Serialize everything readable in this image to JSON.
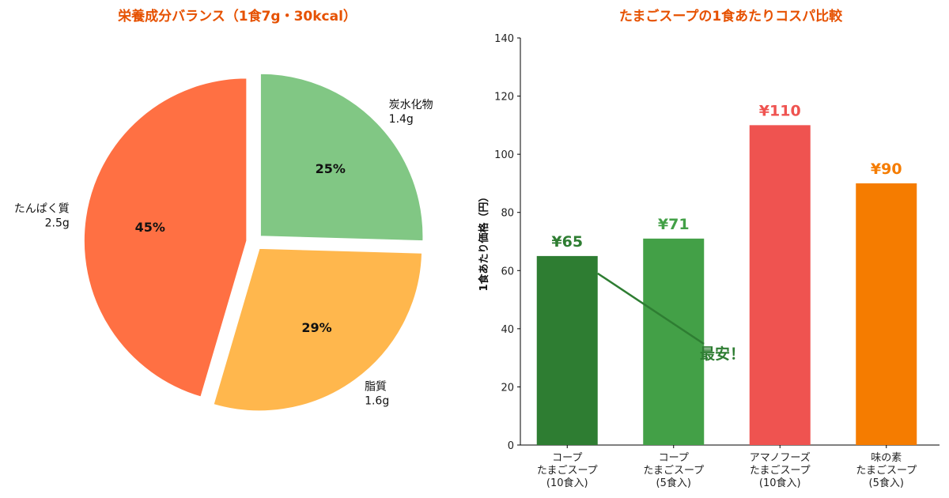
{
  "chart_data": [
    {
      "type": "pie",
      "title": "栄養成分バランス（1食7g・30kcal）",
      "slices": [
        {
          "label": "たんぱく質",
          "amount": "2.5g",
          "value": 2.5,
          "pct_label": "45%",
          "color": "#ff7043"
        },
        {
          "label": "脂質",
          "amount": "1.6g",
          "value": 1.6,
          "pct_label": "29%",
          "color": "#ffb74d"
        },
        {
          "label": "炭水化物",
          "amount": "1.4g",
          "value": 1.4,
          "pct_label": "25%",
          "color": "#81c784"
        }
      ],
      "start_angle": 90,
      "direction": "counterclockwise",
      "exploded": true
    },
    {
      "type": "bar",
      "title": "たまごスープの1食あたりコスパ比較",
      "ylabel": "1食あたり価格（円）",
      "xlabel": "",
      "ylim": [
        0,
        140
      ],
      "yticks": [
        "0",
        "20",
        "40",
        "60",
        "80",
        "100",
        "120",
        "140"
      ],
      "grid": false,
      "categories": [
        [
          "コープ",
          "たまごスープ",
          "(10食入)"
        ],
        [
          "コープ",
          "たまごスープ",
          "(5食入)"
        ],
        [
          "アマノフーズ",
          "たまごスープ",
          "(10食入)"
        ],
        [
          "味の素",
          "たまごスープ",
          "(5食入)"
        ]
      ],
      "values": [
        65,
        71,
        110,
        90
      ],
      "value_labels": [
        "¥65",
        "¥71",
        "¥110",
        "¥90"
      ],
      "colors": [
        "#2e7d32",
        "#43a047",
        "#ef5350",
        "#f57c00"
      ],
      "annotation": {
        "text": "最安！",
        "target_index": 0,
        "color": "#2e7d32"
      }
    }
  ]
}
